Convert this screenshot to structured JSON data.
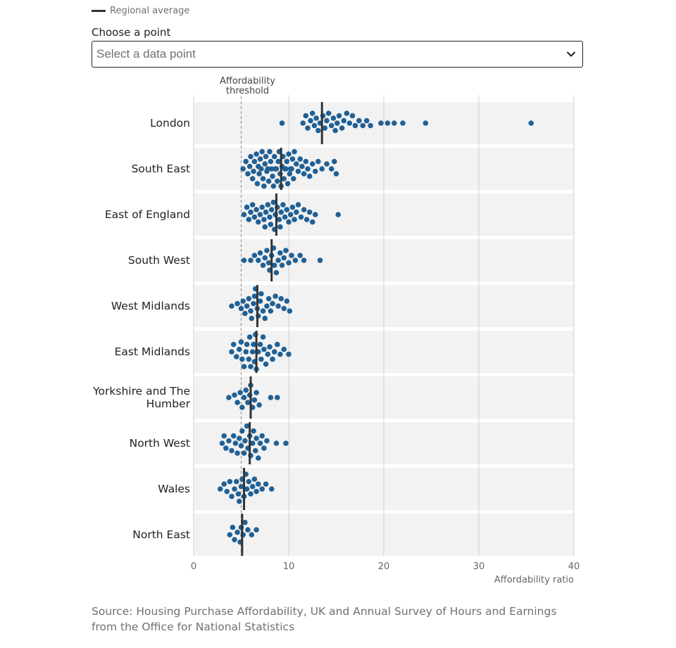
{
  "legend": {
    "label": "Regional average",
    "color": "#333333"
  },
  "picker": {
    "label": "Choose a point",
    "placeholder": "Select a data point",
    "icon": "chevron-down-icon"
  },
  "chart_data": {
    "type": "beeswarm",
    "threshold": {
      "value": 5,
      "label_lines": [
        "Affordability",
        "threshold"
      ]
    },
    "xlabel": "Affordability ratio",
    "xlim": [
      0,
      40
    ],
    "xticks": [
      0,
      10,
      20,
      30,
      40
    ],
    "grid": true,
    "point_color": "#206095",
    "average_color": "#333333",
    "band_color": "#f2f2f2",
    "regions": [
      {
        "name": "London",
        "label_lines": [
          "London"
        ],
        "average": 13.5,
        "values": [
          9.3,
          11.5,
          11.8,
          12.0,
          12.3,
          12.5,
          12.7,
          12.9,
          13.1,
          13.3,
          13.6,
          13.8,
          14.0,
          14.2,
          14.5,
          14.7,
          14.9,
          15.1,
          15.3,
          15.6,
          15.8,
          16.1,
          16.4,
          16.7,
          17.0,
          17.4,
          17.8,
          18.2,
          18.6,
          19.7,
          20.4,
          21.1,
          22.0,
          24.4,
          35.5
        ]
      },
      {
        "name": "South East",
        "label_lines": [
          "South East"
        ],
        "average": 9.2,
        "values": [
          5.2,
          5.5,
          5.7,
          5.9,
          6.0,
          6.2,
          6.3,
          6.4,
          6.6,
          6.7,
          6.8,
          6.9,
          7.0,
          7.1,
          7.2,
          7.3,
          7.4,
          7.5,
          7.6,
          7.7,
          7.8,
          7.9,
          8.0,
          8.1,
          8.2,
          8.3,
          8.4,
          8.5,
          8.6,
          8.7,
          8.8,
          8.9,
          9.0,
          9.1,
          9.2,
          9.3,
          9.4,
          9.5,
          9.6,
          9.7,
          9.8,
          9.9,
          10.0,
          10.1,
          10.2,
          10.3,
          10.4,
          10.5,
          10.6,
          10.8,
          11.0,
          11.2,
          11.4,
          11.6,
          11.8,
          12.0,
          12.2,
          12.5,
          12.8,
          13.1,
          13.5,
          14.0,
          14.5,
          14.8,
          15.0
        ]
      },
      {
        "name": "East of England",
        "label_lines": [
          "East of England"
        ],
        "average": 8.7,
        "values": [
          5.3,
          5.6,
          5.8,
          6.0,
          6.2,
          6.4,
          6.6,
          6.8,
          7.0,
          7.2,
          7.4,
          7.5,
          7.6,
          7.8,
          8.0,
          8.1,
          8.2,
          8.4,
          8.5,
          8.6,
          8.8,
          9.0,
          9.1,
          9.2,
          9.4,
          9.6,
          9.8,
          10.0,
          10.2,
          10.4,
          10.6,
          10.8,
          11.0,
          11.3,
          11.6,
          11.9,
          12.2,
          12.5,
          12.8,
          15.2
        ]
      },
      {
        "name": "South West",
        "label_lines": [
          "South West"
        ],
        "average": 8.2,
        "values": [
          5.3,
          6.0,
          6.4,
          6.8,
          7.0,
          7.3,
          7.5,
          7.7,
          7.9,
          8.0,
          8.2,
          8.4,
          8.5,
          8.7,
          8.9,
          9.1,
          9.3,
          9.5,
          9.7,
          10.0,
          10.3,
          10.7,
          11.2,
          11.6,
          13.3
        ]
      },
      {
        "name": "West Midlands",
        "label_lines": [
          "West Midlands"
        ],
        "average": 6.7,
        "values": [
          4.0,
          4.6,
          5.0,
          5.2,
          5.4,
          5.6,
          5.8,
          6.0,
          6.1,
          6.3,
          6.4,
          6.5,
          6.7,
          6.8,
          7.0,
          7.1,
          7.3,
          7.5,
          7.7,
          7.9,
          8.1,
          8.3,
          8.6,
          8.9,
          9.2,
          9.5,
          9.8,
          10.1
        ]
      },
      {
        "name": "East Midlands",
        "label_lines": [
          "East Midlands"
        ],
        "average": 6.6,
        "values": [
          4.0,
          4.2,
          4.5,
          4.8,
          5.0,
          5.1,
          5.3,
          5.5,
          5.6,
          5.8,
          5.9,
          6.0,
          6.2,
          6.3,
          6.4,
          6.5,
          6.6,
          6.7,
          6.8,
          7.0,
          7.1,
          7.3,
          7.4,
          7.6,
          7.8,
          8.0,
          8.3,
          8.5,
          8.8,
          9.1,
          9.5,
          10.0
        ]
      },
      {
        "name": "Yorkshire and The Humber",
        "label_lines": [
          "Yorkshire and The",
          "Humber"
        ],
        "average": 6.0,
        "values": [
          3.7,
          4.3,
          4.6,
          4.9,
          5.1,
          5.3,
          5.5,
          5.7,
          5.9,
          6.0,
          6.2,
          6.4,
          6.6,
          6.9,
          8.1,
          8.8
        ]
      },
      {
        "name": "North West",
        "label_lines": [
          "North West"
        ],
        "average": 5.9,
        "values": [
          3.0,
          3.2,
          3.4,
          3.7,
          4.0,
          4.2,
          4.4,
          4.6,
          4.8,
          5.0,
          5.1,
          5.3,
          5.4,
          5.6,
          5.7,
          5.9,
          6.0,
          6.2,
          6.3,
          6.5,
          6.6,
          6.8,
          7.0,
          7.2,
          7.4,
          7.7,
          8.7,
          9.7
        ]
      },
      {
        "name": "Wales",
        "label_lines": [
          "Wales"
        ],
        "average": 5.3,
        "values": [
          2.8,
          3.2,
          3.5,
          3.8,
          4.0,
          4.3,
          4.5,
          4.7,
          4.8,
          5.0,
          5.1,
          5.3,
          5.5,
          5.6,
          5.8,
          6.0,
          6.2,
          6.4,
          6.6,
          6.8,
          7.2,
          7.6,
          8.2
        ]
      },
      {
        "name": "North East",
        "label_lines": [
          "North East"
        ],
        "average": 5.1,
        "values": [
          3.8,
          4.1,
          4.3,
          4.6,
          4.9,
          5.0,
          5.2,
          5.4,
          5.7,
          6.1,
          6.6
        ]
      }
    ]
  },
  "source": {
    "text": "Source: Housing Purchase Affordability, UK and Annual Survey of Hours and Earnings from the Office for National Statistics"
  }
}
